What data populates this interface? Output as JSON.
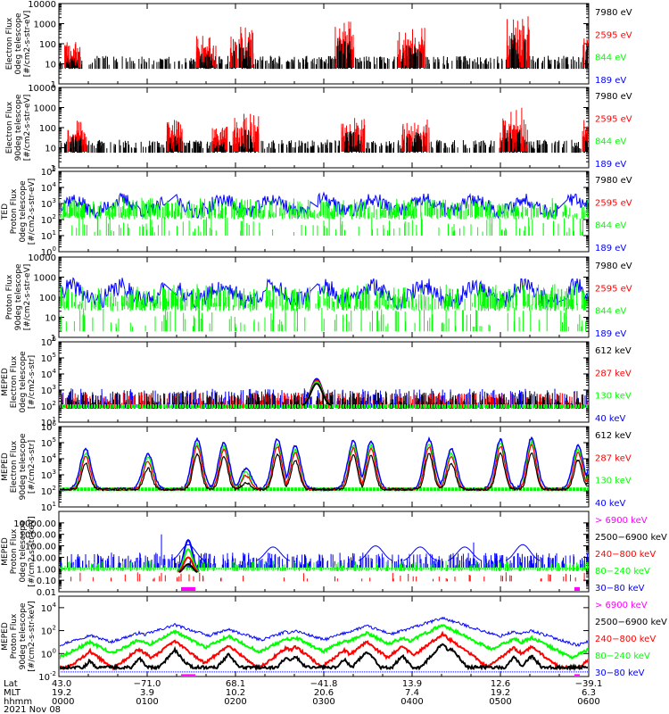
{
  "colors": {
    "black": "#000000",
    "red": "#ff0000",
    "green": "#00ff00",
    "blue": "#0000ff",
    "magenta": "#ff00ff"
  },
  "chart_data": {
    "type": "line",
    "x_ticks": [
      {
        "lat": "43.0",
        "mlt": "19.2",
        "hhmm": "0000"
      },
      {
        "lat": "−71.0",
        "mlt": "3.9",
        "hhmm": "0100"
      },
      {
        "lat": "68.1",
        "mlt": "10.2",
        "hhmm": "0200"
      },
      {
        "lat": "−41.8",
        "mlt": "20.6",
        "hhmm": "0300"
      },
      {
        "lat": "13.9",
        "mlt": "7.4",
        "hhmm": "0400"
      },
      {
        "lat": "12.6",
        "mlt": "19.2",
        "hhmm": "0500"
      },
      {
        "lat": "−39.1",
        "mlt": "6.3",
        "hhmm": "0600"
      }
    ],
    "row_labels": [
      "Lat",
      "MLT",
      "hhmm"
    ],
    "date": "2021 Nov 08",
    "panels": [
      {
        "ylabel": [
          "Electron Flux",
          "0deg telescope",
          "[#/cm2-s-str-eV]"
        ],
        "scale": "log",
        "ylim": [
          1,
          10000
        ],
        "ticks": [
          {
            "v": 1,
            "t": "1"
          },
          {
            "v": 10,
            "t": "10"
          },
          {
            "v": 100,
            "t": "100"
          },
          {
            "v": 1000,
            "t": "1000"
          },
          {
            "v": 10000,
            "t": "10000"
          }
        ],
        "legend": [
          {
            "label": "7980 eV",
            "color": "black"
          },
          {
            "label": "2595 eV",
            "color": "red"
          },
          {
            "label": "844 eV",
            "color": "green"
          },
          {
            "label": "189 eV",
            "color": "blue"
          }
        ],
        "seed": 11,
        "kind": "tedE",
        "bursts": [
          [
            15,
            1.6,
            8,
            "red"
          ],
          [
            165,
            1.9,
            10,
            "red"
          ],
          [
            205,
            2.4,
            12,
            "red"
          ],
          [
            320,
            2.6,
            10,
            "red"
          ],
          [
            395,
            2.3,
            14,
            "red"
          ],
          [
            515,
            2.9,
            12,
            "red"
          ],
          [
            600,
            2.3,
            12,
            "red"
          ],
          [
            640,
            1.4,
            4,
            "red"
          ]
        ]
      },
      {
        "ylabel": [
          "Electron Flux",
          "90deg telescope",
          "[#/cm2-s-str-eV]"
        ],
        "scale": "log",
        "ylim": [
          1,
          10000
        ],
        "ticks": [
          {
            "v": 1,
            "t": "1"
          },
          {
            "v": 10,
            "t": "10"
          },
          {
            "v": 100,
            "t": "100"
          },
          {
            "v": 1000,
            "t": "1000"
          },
          {
            "v": 10000,
            "t": "10000"
          }
        ],
        "legend": [
          {
            "label": "7980 eV",
            "color": "black"
          },
          {
            "label": "2595 eV",
            "color": "red"
          },
          {
            "label": "844 eV",
            "color": "green"
          },
          {
            "label": "189 eV",
            "color": "blue"
          }
        ],
        "seed": 23,
        "kind": "tedE",
        "bursts": [
          [
            20,
            1.9,
            10,
            "red"
          ],
          [
            130,
            1.9,
            8,
            "red"
          ],
          [
            180,
            1.6,
            8,
            "red"
          ],
          [
            210,
            2.2,
            14,
            "red"
          ],
          [
            330,
            2.2,
            12,
            "red"
          ],
          [
            400,
            2.1,
            14,
            "red"
          ],
          [
            510,
            2.5,
            14,
            "red"
          ],
          [
            600,
            2.1,
            12,
            "red"
          ]
        ]
      },
      {
        "ylabel": [
          "TED",
          "Proton Flux",
          "0deg telescope",
          "[#/cm2-s-str-eV]"
        ],
        "scale": "log",
        "ylim": [
          1,
          100000
        ],
        "ticks": [
          {
            "v": 1,
            "t": "10^0"
          },
          {
            "v": 10,
            "t": "10^1"
          },
          {
            "v": 100,
            "t": "10^2"
          },
          {
            "v": 1000,
            "t": "10^3"
          },
          {
            "v": 10000,
            "t": "10^4"
          },
          {
            "v": 100000,
            "t": "10^5"
          }
        ],
        "legend": [
          {
            "label": "7980 eV",
            "color": "black"
          },
          {
            "label": "2595 eV",
            "color": "red"
          },
          {
            "label": "844 eV",
            "color": "green"
          },
          {
            "label": "189 eV",
            "color": "blue"
          }
        ],
        "seed": 37,
        "kind": "tedP",
        "base": 2.6
      },
      {
        "ylabel": [
          "Proton Flux",
          "90deg telescope",
          "[#/cm2-s-str-eV]"
        ],
        "scale": "log",
        "ylim": [
          1,
          10000
        ],
        "ticks": [
          {
            "v": 1,
            "t": "1"
          },
          {
            "v": 10,
            "t": "10"
          },
          {
            "v": 100,
            "t": "100"
          },
          {
            "v": 1000,
            "t": "1000"
          },
          {
            "v": 10000,
            "t": "10000"
          }
        ],
        "legend": [
          {
            "label": "7980 eV",
            "color": "black"
          },
          {
            "label": "2595 eV",
            "color": "red"
          },
          {
            "label": "844 eV",
            "color": "green"
          },
          {
            "label": "189 eV",
            "color": "blue"
          }
        ],
        "seed": 41,
        "kind": "tedP",
        "base": 1.9
      },
      {
        "ylabel": [
          "MEPED",
          "Electron Flux",
          "0deg telescope",
          "[#/cm2-s-str]"
        ],
        "scale": "log",
        "ylim": [
          10,
          1000000
        ],
        "ticks": [
          {
            "v": 10,
            "t": "10^1"
          },
          {
            "v": 100,
            "t": "10^2"
          },
          {
            "v": 1000,
            "t": "10^3"
          },
          {
            "v": 10000,
            "t": "10^4"
          },
          {
            "v": 100000,
            "t": "10^5"
          },
          {
            "v": 1000000,
            "t": "10^6"
          }
        ],
        "legend": [
          {
            "label": "612 keV",
            "color": "black"
          },
          {
            "label": "287 keV",
            "color": "red"
          },
          {
            "label": "130 keV",
            "color": "green"
          },
          {
            "label": "40 keV",
            "color": "blue"
          }
        ],
        "seed": 53,
        "kind": "mepe0",
        "peaks": [
          [
            210,
            3.7
          ]
        ]
      },
      {
        "ylabel": [
          "MEPED",
          "Electron Flux",
          "90deg telescope",
          "[#/cm2-s-str]"
        ],
        "scale": "log",
        "ylim": [
          10,
          1000000
        ],
        "ticks": [
          {
            "v": 10,
            "t": "10^1"
          },
          {
            "v": 100,
            "t": "10^2"
          },
          {
            "v": 1000,
            "t": "10^3"
          },
          {
            "v": 10000,
            "t": "10^4"
          },
          {
            "v": 100000,
            "t": "10^5"
          },
          {
            "v": 1000000,
            "t": "10^6"
          }
        ],
        "legend": [
          {
            "label": "612 keV",
            "color": "black"
          },
          {
            "label": "287 keV",
            "color": "red"
          },
          {
            "label": "130 keV",
            "color": "green"
          },
          {
            "label": "40 keV",
            "color": "blue"
          }
        ],
        "seed": 67,
        "kind": "mepe90",
        "peaks": [
          [
            30,
            4.6
          ],
          [
            100,
            4.3
          ],
          [
            155,
            5.2
          ],
          [
            185,
            5.0
          ],
          [
            210,
            3.4
          ],
          [
            245,
            5.2
          ],
          [
            265,
            4.8
          ],
          [
            330,
            5.1
          ],
          [
            350,
            5.1
          ],
          [
            415,
            5.2
          ],
          [
            440,
            4.6
          ],
          [
            495,
            5.2
          ],
          [
            530,
            5.3
          ],
          [
            600,
            4.5
          ],
          [
            582,
            4.8
          ],
          [
            650,
            3.8
          ]
        ]
      },
      {
        "ylabel": [
          "MEPED",
          "Proton Flux",
          "0deg telescope",
          "[#/cm2-s-str-keV]"
        ],
        "scale": "log",
        "ylim": [
          0.01,
          100000
        ],
        "ticks": [
          {
            "v": 0.01,
            "t": "0.01"
          },
          {
            "v": 0.1,
            "t": "0.10"
          },
          {
            "v": 1,
            "t": "1.00"
          },
          {
            "v": 10,
            "t": "10.00"
          },
          {
            "v": 100,
            "t": "100.00"
          },
          {
            "v": 1000,
            "t": "1000.00"
          },
          {
            "v": 10000,
            "t": "10000.00"
          }
        ],
        "legend": [
          {
            "label": "> 6900 keV",
            "color": "magenta"
          },
          {
            "label": "2500−6900 keV",
            "color": "black"
          },
          {
            "label": "240−800 keV",
            "color": "red"
          },
          {
            "label": "80−240 keV",
            "color": "green"
          },
          {
            "label": "30−80 keV",
            "color": "blue"
          }
        ],
        "seed": 79,
        "kind": "mepp0"
      },
      {
        "ylabel": [
          "MEPED",
          "Proton Flux",
          "90deg telescope",
          "[#/cm2-s-str-keV]"
        ],
        "scale": "log",
        "ylim": [
          0.01,
          100000
        ],
        "ticks": [
          {
            "v": 0.01,
            "t": "10^-2"
          },
          {
            "v": 1,
            "t": "10^0"
          },
          {
            "v": 100,
            "t": "10^2"
          },
          {
            "v": 10000,
            "t": "10^4"
          }
        ],
        "legend": [
          {
            "label": "> 6900 keV",
            "color": "magenta"
          },
          {
            "label": "2500−6900 keV",
            "color": "black"
          },
          {
            "label": "240−800 keV",
            "color": "red"
          },
          {
            "label": "80−240 keV",
            "color": "green"
          },
          {
            "label": "30−80 keV",
            "color": "blue"
          }
        ],
        "seed": 97,
        "kind": "mepp90"
      }
    ]
  }
}
